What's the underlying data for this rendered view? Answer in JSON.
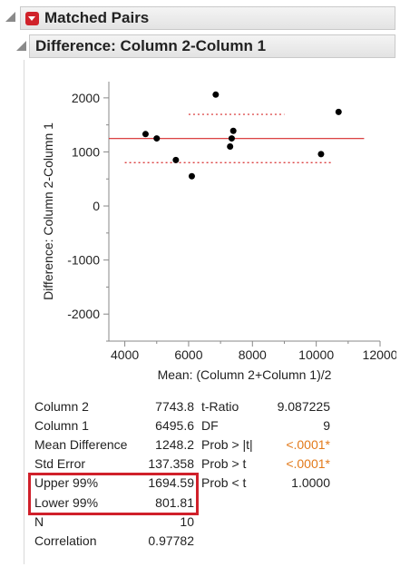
{
  "header": {
    "title": "Matched Pairs"
  },
  "subheader": {
    "title": "Difference: Column 2-Column 1"
  },
  "chart_data": {
    "type": "scatter",
    "xlabel": "Mean: (Column 2+Column 1)/2",
    "ylabel": "Difference: Column 2-Column 1",
    "xlim": [
      3500,
      12000
    ],
    "ylim": [
      -2500,
      2300
    ],
    "xticks": [
      4000,
      6000,
      8000,
      10000,
      12000
    ],
    "yticks": [
      2000,
      1000,
      0,
      -1000,
      -2000
    ],
    "points": [
      {
        "x": 4650,
        "y": 1330
      },
      {
        "x": 5000,
        "y": 1250
      },
      {
        "x": 5600,
        "y": 850
      },
      {
        "x": 6100,
        "y": 550
      },
      {
        "x": 6850,
        "y": 2060
      },
      {
        "x": 7300,
        "y": 1100
      },
      {
        "x": 7350,
        "y": 1250
      },
      {
        "x": 7400,
        "y": 1390
      },
      {
        "x": 10150,
        "y": 960
      },
      {
        "x": 10700,
        "y": 1740
      }
    ],
    "mean_line": {
      "y": 1248.2,
      "x": [
        3500,
        11500
      ],
      "color": "#d62728"
    },
    "upper_ci": {
      "y": 1694.59,
      "x": [
        6000,
        9000
      ]
    },
    "lower_ci": {
      "y": 801.81,
      "x": [
        4000,
        10500
      ]
    },
    "ci_color": "#d62728"
  },
  "stats": {
    "left": [
      {
        "label": "Column 2",
        "value": "7743.8"
      },
      {
        "label": "Column 1",
        "value": "6495.6"
      },
      {
        "label": "Mean Difference",
        "value": "1248.2"
      },
      {
        "label": "Std Error",
        "value": "137.358"
      },
      {
        "label": "Upper 99%",
        "value": "1694.59"
      },
      {
        "label": "Lower 99%",
        "value": "801.81"
      },
      {
        "label": "N",
        "value": "10"
      },
      {
        "label": "Correlation",
        "value": "0.97782"
      }
    ],
    "right": [
      {
        "label": "t-Ratio",
        "value": "9.087225"
      },
      {
        "label": "DF",
        "value": "9"
      },
      {
        "label": "Prob > |t|",
        "value": "<.0001*"
      },
      {
        "label": "Prob > t",
        "value": "<.0001*"
      },
      {
        "label": "Prob < t",
        "value": "1.0000"
      }
    ],
    "highlight_color": "#d0202a",
    "significant_color": "#e27a1b"
  }
}
